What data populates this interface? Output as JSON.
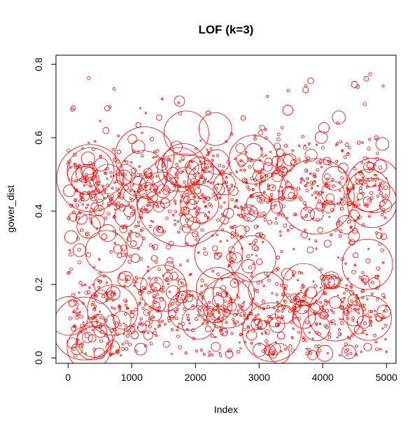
{
  "chart_data": {
    "type": "scatter",
    "title": "LOF (k=3)",
    "xlabel": "Index",
    "ylabel": "gower_dist",
    "xlim": [
      -190,
      5150
    ],
    "ylim": [
      -0.015,
      0.825
    ],
    "x_ticks": [
      0,
      1000,
      2000,
      3000,
      4000,
      5000
    ],
    "y_ticks": [
      0.0,
      0.2,
      0.4,
      0.6,
      0.8
    ],
    "x_tick_labels": [
      "0",
      "1000",
      "2000",
      "3000",
      "4000",
      "5000"
    ],
    "y_tick_labels": [
      "0.0",
      "0.2",
      "0.4",
      "0.6",
      "0.8"
    ],
    "grid": false,
    "legend": "none",
    "marker": "open-circle",
    "marker_color": "#ff0000",
    "n_points": 5000,
    "point_size_encodes": "LOF score",
    "clusters": [
      {
        "x_range": [
          0,
          5000
        ],
        "y_center": 0.13,
        "y_spread": 0.07
      },
      {
        "x_range": [
          0,
          5000
        ],
        "y_center": 0.46,
        "y_spread": 0.07
      }
    ],
    "notable_points": [
      {
        "x": 1750,
        "y": 0.7,
        "lof": 2.5
      },
      {
        "x": 3450,
        "y": 0.675,
        "lof": 2.4
      },
      {
        "x": 4500,
        "y": 0.745,
        "lof": 1.6
      },
      {
        "x": 1700,
        "y": 0.575,
        "lof": 2.8
      },
      {
        "x": 1800,
        "y": 0.43,
        "lof": 22
      },
      {
        "x": 350,
        "y": 0.49,
        "lof": 16
      },
      {
        "x": 3900,
        "y": 0.44,
        "lof": 18
      },
      {
        "x": 1200,
        "y": 0.55,
        "lof": 14
      },
      {
        "x": 4800,
        "y": 0.47,
        "lof": 13
      },
      {
        "x": 2900,
        "y": 0.27,
        "lof": 11
      },
      {
        "x": 4700,
        "y": 0.255,
        "lof": 12
      },
      {
        "x": 600,
        "y": 0.29,
        "lof": 10
      },
      {
        "x": 250,
        "y": 0.08,
        "lof": 15
      },
      {
        "x": 3200,
        "y": 0.07,
        "lof": 14
      },
      {
        "x": 2500,
        "y": 0.15,
        "lof": 12
      },
      {
        "x": 4200,
        "y": 0.12,
        "lof": 13
      },
      {
        "x": 1500,
        "y": 0.19,
        "lof": 11
      },
      {
        "x": 700,
        "y": 0.13,
        "lof": 12
      },
      {
        "x": 3700,
        "y": 0.2,
        "lof": 10
      }
    ]
  }
}
